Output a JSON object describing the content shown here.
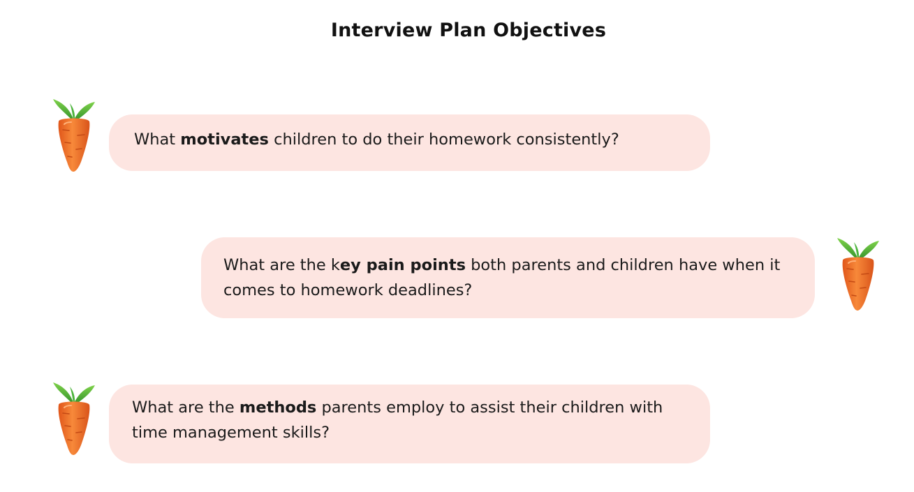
{
  "title": "Interview Plan Objectives",
  "questions": [
    {
      "before": "What ",
      "bold": "motivates",
      "after": " children to do their homework consistently?",
      "icon": "carrot-icon",
      "side": "left"
    },
    {
      "before": "What are the k",
      "bold": "ey pain points",
      "after": " both parents and children have when it comes to homework deadlines?",
      "icon": "carrot-icon",
      "side": "right"
    },
    {
      "before": "What are the ",
      "bold": "methods",
      "after": " parents employ to assist their children with time management skills?",
      "icon": "carrot-icon",
      "side": "left"
    }
  ],
  "colors": {
    "bubble": "#fde5e1",
    "carrot_body": "#f07a2c",
    "carrot_leaf": "#3aa836"
  }
}
